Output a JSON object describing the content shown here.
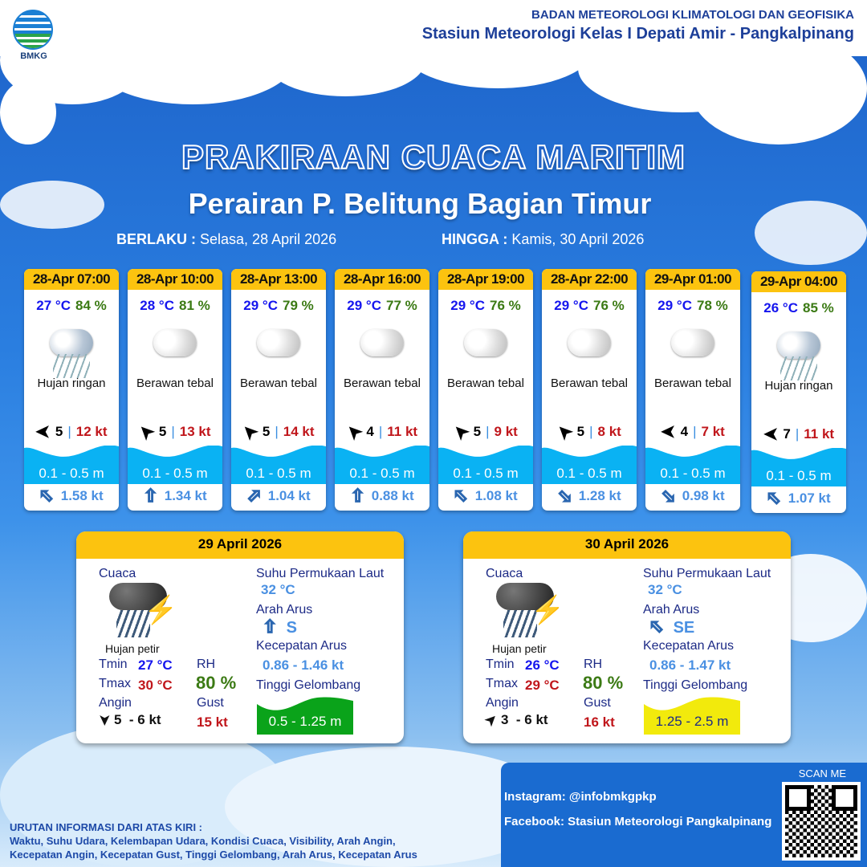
{
  "header": {
    "logo_text": "BMKG",
    "agency": "BADAN METEOROLOGI KLIMATOLOGI DAN GEOFISIKA",
    "station": "Stasiun Meteorologi Kelas I Depati Amir - Pangkalpinang"
  },
  "title": "PRAKIRAAN CUACA MARITIM",
  "subtitle": "Perairan P. Belitung Bagian Timur",
  "validity": {
    "from_label": "BERLAKU :",
    "from_value": "Selasa, 28 April 2026",
    "to_label": "HINGGA :",
    "to_value": "Kamis, 30 April 2026"
  },
  "forecasts": [
    {
      "time": "28-Apr 07:00",
      "temp": "27 °C",
      "rh": "84 %",
      "condition": "Hujan ringan",
      "icon": "rain-icon",
      "wind_dir": "W",
      "wind": "5",
      "gust": "12 kt",
      "wave": "0.1 - 0.5 m",
      "current_dir": "SE",
      "current": "1.58 kt"
    },
    {
      "time": "28-Apr 10:00",
      "temp": "28 °C",
      "rh": "81 %",
      "condition": "Berawan tebal",
      "icon": "cloud-icon",
      "wind_dir": "NW",
      "wind": "5",
      "gust": "13 kt",
      "wave": "0.1 - 0.5 m",
      "current_dir": "S",
      "current": "1.34 kt"
    },
    {
      "time": "28-Apr 13:00",
      "temp": "29 °C",
      "rh": "79 %",
      "condition": "Berawan tebal",
      "icon": "cloud-icon",
      "wind_dir": "NW",
      "wind": "5",
      "gust": "14 kt",
      "wave": "0.1 - 0.5 m",
      "current_dir": "SW",
      "current": "1.04 kt"
    },
    {
      "time": "28-Apr 16:00",
      "temp": "29 °C",
      "rh": "77 %",
      "condition": "Berawan tebal",
      "icon": "cloud-icon",
      "wind_dir": "NW",
      "wind": "4",
      "gust": "11 kt",
      "wave": "0.1 - 0.5 m",
      "current_dir": "S",
      "current": "0.88 kt"
    },
    {
      "time": "28-Apr 19:00",
      "temp": "29 °C",
      "rh": "76 %",
      "condition": "Berawan tebal",
      "icon": "cloud-icon",
      "wind_dir": "NW",
      "wind": "5",
      "gust": "9 kt",
      "wave": "0.1 - 0.5 m",
      "current_dir": "SE",
      "current": "1.08 kt"
    },
    {
      "time": "28-Apr 22:00",
      "temp": "29 °C",
      "rh": "76 %",
      "condition": "Berawan tebal",
      "icon": "cloud-icon",
      "wind_dir": "NW",
      "wind": "5",
      "gust": "8 kt",
      "wave": "0.1 - 0.5 m",
      "current_dir": "NW",
      "current": "1.28 kt"
    },
    {
      "time": "29-Apr 01:00",
      "temp": "29 °C",
      "rh": "78 %",
      "condition": "Berawan tebal",
      "icon": "cloud-icon",
      "wind_dir": "W",
      "wind": "4",
      "gust": "7 kt",
      "wave": "0.1 - 0.5 m",
      "current_dir": "NW",
      "current": "0.98 kt"
    },
    {
      "time": "29-Apr 04:00",
      "temp": "26 °C",
      "rh": "85 %",
      "condition": "Hujan ringan",
      "icon": "rain-icon",
      "wind_dir": "W",
      "wind": "7",
      "gust": "11 kt",
      "wave": "0.1 - 0.5 m",
      "current_dir": "SE",
      "current": "1.07 kt"
    }
  ],
  "daily": [
    {
      "date": "29 April 2026",
      "weather_label": "Cuaca",
      "condition": "Hujan petir",
      "tmin_label": "Tmin",
      "tmin": "27 °C",
      "tmax_label": "Tmax",
      "tmax": "30 °C",
      "rh_label": "RH",
      "rh": "80 %",
      "wind_label": "Angin",
      "wind_dir": "S",
      "wind": "5  - 6 kt",
      "gust_label": "Gust",
      "gust": "15 kt",
      "sst_label": "Suhu Permukaan Laut",
      "sst": "32 °C",
      "cur_dir_label": "Arah Arus",
      "cur_dir": "S",
      "cur_speed_label": "Kecepatan Arus",
      "cur_speed": "0.86 - 1.46 kt",
      "wave_label": "Tinggi Gelombang",
      "wave": "0.5 - 1.25 m",
      "wave_color": "#0aa31a",
      "wave_text_color": "#ffffff"
    },
    {
      "date": "30 April 2026",
      "weather_label": "Cuaca",
      "condition": "Hujan petir",
      "tmin_label": "Tmin",
      "tmin": "26 °C",
      "tmax_label": "Tmax",
      "tmax": "29 °C",
      "rh_label": "RH",
      "rh": "80 %",
      "wind_label": "Angin",
      "wind_dir": "NE",
      "wind": "3  - 6 kt",
      "gust_label": "Gust",
      "gust": "16 kt",
      "sst_label": "Suhu Permukaan Laut",
      "sst": "32 °C",
      "cur_dir_label": "Arah Arus",
      "cur_dir": "SE",
      "cur_speed_label": "Kecepatan Arus",
      "cur_speed": "0.86 - 1.47 kt",
      "wave_label": "Tinggi Gelombang",
      "wave": "1.25 - 2.5 m",
      "wave_color": "#f2ea0c",
      "wave_text_color": "#1c2a86"
    }
  ],
  "social": {
    "scan": "SCAN ME",
    "instagram": "Instagram:  @infobmkgpkp",
    "facebook": "Facebook:  Stasiun  Meteorologi  Pangkalpinang"
  },
  "legend": {
    "title": "URUTAN INFORMASI DARI ATAS KIRI :",
    "line1": "Waktu, Suhu Udara, Kelembapan Udara, Kondisi Cuaca, Visibility, Arah Angin,",
    "line2": "Kecepatan Angin, Kecepatan Gust, Tinggi Gelombang, Arah Arus, Kecepatan Arus"
  },
  "colors": {
    "header_yellow": "#fcc30f",
    "wave_blue": "#0ab2f3",
    "gust_red": "#c0161b",
    "temp_blue": "#1515ee",
    "rh_green": "#3b7a14"
  }
}
